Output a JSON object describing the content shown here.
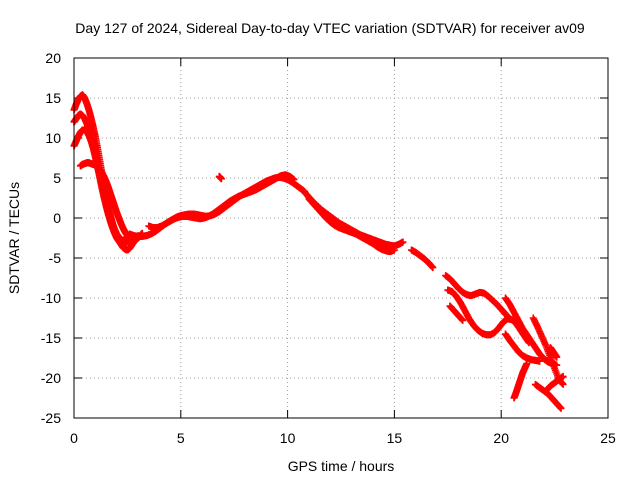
{
  "chart_data": {
    "type": "scatter",
    "title": "Day 127 of 2024, Sidereal Day-to-day VTEC variation (SDTVAR) for receiver av09",
    "xlabel": "GPS time / hours",
    "ylabel": "SDTVAR / TECUs",
    "xlim": [
      0,
      25
    ],
    "ylim": [
      -25,
      20
    ],
    "x_ticks": [
      0,
      5,
      10,
      15,
      20,
      25
    ],
    "y_ticks": [
      -25,
      -20,
      -15,
      -10,
      -5,
      0,
      5,
      10,
      15,
      20
    ],
    "grid": true,
    "marker": "plus",
    "color": "#ff0000",
    "series": [
      {
        "name": "track-upper-start",
        "x": [
          0.0,
          0.1,
          0.2,
          0.3,
          0.4,
          0.5,
          0.6,
          0.7,
          0.8,
          0.9,
          1.0,
          1.1,
          1.2,
          1.3,
          1.4,
          1.5,
          1.6,
          1.7,
          1.8,
          1.9,
          2.0,
          2.1,
          2.2,
          2.3,
          2.4,
          2.5,
          2.6,
          2.7,
          2.8,
          2.9,
          3.0
        ],
        "y": [
          13.5,
          14.2,
          14.8,
          15.2,
          15.4,
          15.0,
          14.3,
          13.5,
          12.5,
          11.4,
          10.2,
          8.8,
          7.3,
          5.8,
          4.3,
          2.9,
          1.6,
          0.4,
          -0.6,
          -1.5,
          -2.2,
          -2.8,
          -3.3,
          -3.7,
          -3.9,
          -4.0,
          -3.8,
          -3.4,
          -3.0,
          -2.6,
          -2.2
        ]
      },
      {
        "name": "track-upper-2",
        "x": [
          0.0,
          0.1,
          0.2,
          0.3,
          0.4,
          0.5,
          0.6,
          0.7,
          0.8,
          0.9,
          1.0,
          1.1,
          1.2,
          1.3,
          1.4,
          1.5,
          1.6,
          1.7,
          1.8,
          1.9,
          2.0,
          2.1,
          2.2,
          2.3,
          2.4,
          2.5,
          2.6
        ],
        "y": [
          12.0,
          12.4,
          12.8,
          13.0,
          12.8,
          12.4,
          11.8,
          11.0,
          10.0,
          8.9,
          7.7,
          6.4,
          5.1,
          3.8,
          2.6,
          1.5,
          0.5,
          -0.4,
          -1.2,
          -1.9,
          -2.5,
          -2.9,
          -3.2,
          -3.3,
          -3.2,
          -2.9,
          -2.5
        ]
      },
      {
        "name": "track-upper-3",
        "x": [
          0.0,
          0.1,
          0.2,
          0.3,
          0.4,
          0.5,
          0.6,
          0.7,
          0.8,
          0.9,
          1.0,
          1.1,
          1.2,
          1.3,
          1.4,
          1.5,
          1.6,
          1.7,
          1.8,
          1.9,
          2.0,
          2.1,
          2.2,
          2.3,
          2.4,
          2.5
        ],
        "y": [
          9.0,
          9.6,
          10.2,
          10.7,
          11.0,
          11.0,
          10.8,
          10.3,
          9.6,
          8.7,
          7.6,
          6.5,
          5.3,
          4.1,
          3.0,
          2.0,
          1.0,
          0.1,
          -0.7,
          -1.4,
          -2.0,
          -2.4,
          -2.7,
          -2.8,
          -2.7,
          -2.4
        ]
      },
      {
        "name": "track-lower-start",
        "x": [
          0.3,
          0.4,
          0.5,
          0.6,
          0.7,
          0.8,
          0.9,
          1.0,
          1.1,
          1.2,
          1.3,
          1.4,
          1.5,
          1.6,
          1.7,
          1.8,
          1.9,
          2.0,
          2.1,
          2.2,
          2.3,
          2.4,
          2.5,
          2.6,
          2.7,
          2.8,
          2.9,
          3.0,
          3.1,
          3.2
        ],
        "y": [
          6.5,
          6.7,
          6.8,
          6.9,
          6.9,
          6.8,
          6.7,
          6.6,
          6.4,
          6.1,
          5.7,
          5.2,
          4.6,
          3.9,
          3.1,
          2.3,
          1.5,
          0.7,
          0.0,
          -0.7,
          -1.3,
          -1.8,
          -2.2,
          -2.5,
          -2.7,
          -2.8,
          -2.7,
          -2.5,
          -2.2,
          -1.9
        ]
      },
      {
        "name": "track-mid",
        "x": [
          2.6,
          2.8,
          3.0,
          3.2,
          3.4,
          3.6,
          3.8,
          4.0,
          4.2,
          4.4,
          4.6,
          4.8,
          5.0,
          5.2,
          5.4,
          5.6,
          5.8,
          6.0,
          6.2,
          6.4,
          6.6,
          6.8,
          7.0,
          7.2,
          7.4,
          7.6,
          7.8,
          8.0,
          8.2,
          8.4,
          8.6,
          8.8,
          9.0,
          9.2,
          9.4,
          9.6,
          9.8,
          10.0,
          10.2,
          10.4,
          10.6,
          10.8
        ],
        "y": [
          -2.0,
          -2.2,
          -2.3,
          -2.3,
          -2.2,
          -2.0,
          -1.7,
          -1.3,
          -0.9,
          -0.5,
          -0.2,
          0.1,
          0.3,
          0.4,
          0.5,
          0.5,
          0.4,
          0.3,
          0.2,
          0.3,
          0.5,
          0.8,
          1.2,
          1.6,
          2.0,
          2.4,
          2.8,
          3.1,
          3.4,
          3.7,
          4.0,
          4.3,
          4.6,
          4.8,
          5.0,
          5.1,
          5.0,
          4.8,
          4.5,
          4.1,
          3.7,
          3.3
        ]
      },
      {
        "name": "track-mid-2",
        "x": [
          3.5,
          3.7,
          3.9,
          4.1,
          4.3,
          4.5,
          4.7,
          4.9,
          5.1,
          5.3,
          5.5,
          5.7,
          5.9,
          6.1,
          6.3,
          6.5,
          6.7,
          6.9,
          7.1,
          7.3,
          7.5,
          7.7,
          7.9,
          8.1,
          8.3,
          8.5,
          8.7,
          8.9,
          9.1,
          9.3,
          9.5,
          9.7,
          9.9,
          10.1,
          10.3
        ],
        "y": [
          -1.0,
          -1.2,
          -1.2,
          -1.0,
          -0.7,
          -0.4,
          -0.1,
          0.1,
          0.2,
          0.2,
          0.1,
          0.0,
          -0.1,
          0.0,
          0.2,
          0.5,
          0.9,
          1.3,
          1.7,
          2.1,
          2.4,
          2.7,
          2.9,
          3.1,
          3.3,
          3.5,
          3.8,
          4.1,
          4.4,
          4.7,
          5.0,
          5.3,
          5.4,
          5.2,
          4.8
        ]
      },
      {
        "name": "track-isolated",
        "x": [
          6.8,
          6.9
        ],
        "y": [
          5.2,
          4.9
        ]
      },
      {
        "name": "track-descending",
        "x": [
          10.8,
          11.0,
          11.2,
          11.4,
          11.6,
          11.8,
          12.0,
          12.2,
          12.4,
          12.6,
          12.8,
          13.0,
          13.2,
          13.4,
          13.6,
          13.8,
          14.0,
          14.2,
          14.4,
          14.6,
          14.8,
          15.0,
          15.2,
          15.4
        ],
        "y": [
          3.2,
          2.6,
          2.0,
          1.5,
          1.0,
          0.6,
          0.2,
          -0.2,
          -0.6,
          -0.9,
          -1.2,
          -1.5,
          -1.8,
          -2.1,
          -2.3,
          -2.5,
          -2.7,
          -2.9,
          -3.1,
          -3.3,
          -3.4,
          -3.5,
          -3.3,
          -3.0
        ]
      },
      {
        "name": "track-descending-2",
        "x": [
          11.0,
          11.2,
          11.4,
          11.6,
          11.8,
          12.0,
          12.2,
          12.4,
          12.6,
          12.8,
          13.0,
          13.2,
          13.4,
          13.6,
          13.8,
          14.0,
          14.2,
          14.4,
          14.6,
          14.8,
          15.0
        ],
        "y": [
          2.4,
          1.8,
          1.2,
          0.6,
          0.0,
          -0.5,
          -0.9,
          -1.2,
          -1.4,
          -1.6,
          -1.8,
          -2.0,
          -2.3,
          -2.6,
          -2.9,
          -3.2,
          -3.6,
          -3.9,
          -4.1,
          -4.2,
          -4.0
        ]
      },
      {
        "name": "track-late-1",
        "x": [
          15.8,
          16.0,
          16.2,
          16.4,
          16.6,
          16.8
        ],
        "y": [
          -4.0,
          -4.3,
          -4.7,
          -5.1,
          -5.6,
          -6.2
        ]
      },
      {
        "name": "track-late-2",
        "x": [
          17.4,
          17.6,
          17.8,
          18.0,
          18.2,
          18.4,
          18.6,
          18.8,
          19.0,
          19.2,
          19.4,
          19.6,
          19.8,
          20.0,
          20.2,
          20.4
        ],
        "y": [
          -7.2,
          -7.6,
          -8.2,
          -8.8,
          -9.3,
          -9.6,
          -9.7,
          -9.5,
          -9.3,
          -9.4,
          -9.8,
          -10.3,
          -10.8,
          -11.4,
          -12.0,
          -12.6
        ]
      },
      {
        "name": "track-late-3",
        "x": [
          17.5,
          17.7,
          17.9,
          18.1,
          18.3,
          18.5,
          18.7,
          18.9,
          19.1,
          19.3,
          19.5,
          19.7,
          19.9,
          20.1,
          20.3,
          20.5,
          20.7,
          20.9,
          21.1,
          21.3
        ],
        "y": [
          -9.0,
          -9.2,
          -9.8,
          -10.6,
          -11.6,
          -12.6,
          -13.4,
          -14.0,
          -14.4,
          -14.6,
          -14.6,
          -14.3,
          -13.7,
          -13.0,
          -12.6,
          -12.7,
          -13.2,
          -14.0,
          -14.8,
          -15.6
        ]
      },
      {
        "name": "track-late-4",
        "x": [
          17.6,
          17.8,
          18.0,
          18.2
        ],
        "y": [
          -11.0,
          -11.6,
          -12.2,
          -12.8
        ]
      },
      {
        "name": "track-late-5",
        "x": [
          20.2,
          20.4,
          20.6,
          20.8,
          21.0,
          21.2,
          21.4,
          21.6,
          21.8,
          22.0,
          22.2,
          22.4,
          22.6
        ],
        "y": [
          -10.0,
          -10.8,
          -11.8,
          -12.8,
          -13.8,
          -14.6,
          -15.4,
          -16.2,
          -17.0,
          -17.6,
          -18.0,
          -18.2,
          -18.4
        ]
      },
      {
        "name": "track-late-6",
        "x": [
          20.2,
          20.4,
          20.6,
          20.8,
          21.0,
          21.2,
          21.4,
          21.6,
          21.8
        ],
        "y": [
          -14.5,
          -15.3,
          -16.0,
          -16.7,
          -17.2,
          -17.5,
          -17.7,
          -17.8,
          -17.9
        ]
      },
      {
        "name": "track-late-7",
        "x": [
          20.6,
          20.7,
          20.8,
          20.9,
          21.0,
          21.1,
          21.2
        ],
        "y": [
          -22.5,
          -21.8,
          -21.0,
          -20.2,
          -19.4,
          -18.8,
          -18.2
        ]
      },
      {
        "name": "track-late-8",
        "x": [
          21.5,
          21.7,
          21.9,
          22.1,
          22.3,
          22.5,
          22.7,
          22.9
        ],
        "y": [
          -12.5,
          -13.6,
          -14.8,
          -16.0,
          -17.4,
          -18.8,
          -20.2,
          -20.8
        ]
      },
      {
        "name": "track-late-9",
        "x": [
          21.6,
          21.8,
          22.0,
          22.2,
          22.4,
          22.6,
          22.8
        ],
        "y": [
          -20.8,
          -21.2,
          -21.6,
          -22.0,
          -22.6,
          -23.2,
          -23.8
        ]
      },
      {
        "name": "track-late-10",
        "x": [
          22.1,
          22.3,
          22.5,
          22.7,
          22.9
        ],
        "y": [
          -21.6,
          -21.0,
          -20.6,
          -20.2,
          -19.8
        ]
      },
      {
        "name": "track-late-11",
        "x": [
          22.3,
          22.4,
          22.5,
          22.6
        ],
        "y": [
          -16.2,
          -16.6,
          -17.0,
          -17.4
        ]
      }
    ]
  }
}
